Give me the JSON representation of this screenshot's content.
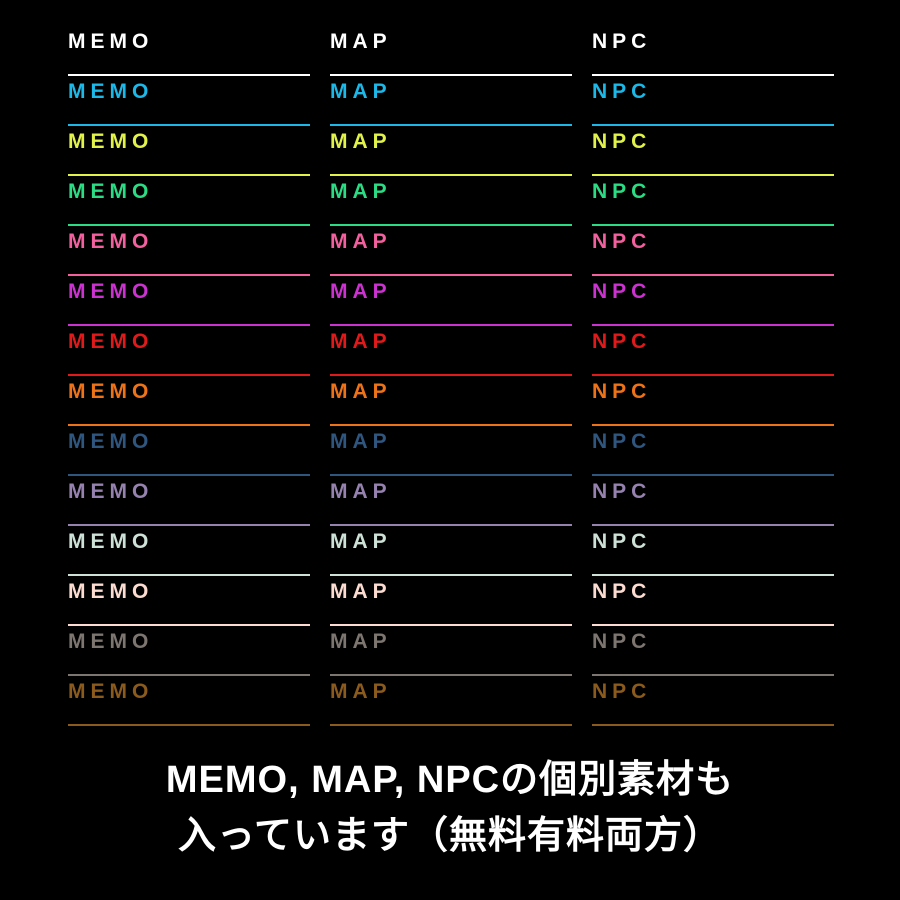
{
  "page": {
    "background": "#000000",
    "text_color": "#ffffff"
  },
  "grid": {
    "columns": [
      "MEMO",
      "MAP",
      "NPC"
    ],
    "rows": [
      {
        "color_name": "white",
        "color": "#ffffff"
      },
      {
        "color_name": "cyan",
        "color": "#1cb8e8"
      },
      {
        "color_name": "yellow-green",
        "color": "#e1f24b"
      },
      {
        "color_name": "spring-green",
        "color": "#2bdc85"
      },
      {
        "color_name": "pink",
        "color": "#f2609e"
      },
      {
        "color_name": "magenta",
        "color": "#cc32d0"
      },
      {
        "color_name": "red",
        "color": "#e01a1a"
      },
      {
        "color_name": "orange",
        "color": "#ee7318"
      },
      {
        "color_name": "dark-blue",
        "color": "#2f567f"
      },
      {
        "color_name": "muted-purple",
        "color": "#9682af"
      },
      {
        "color_name": "pale-mint",
        "color": "#cde1d7"
      },
      {
        "color_name": "pale-pink",
        "color": "#fcdcd0"
      },
      {
        "color_name": "gray",
        "color": "#7d7570"
      },
      {
        "color_name": "brown",
        "color": "#8b5a1d"
      }
    ]
  },
  "footer": {
    "line1": "MEMO, MAP, NPCの個別素材も",
    "line2": "入っています（無料有料両方）"
  }
}
